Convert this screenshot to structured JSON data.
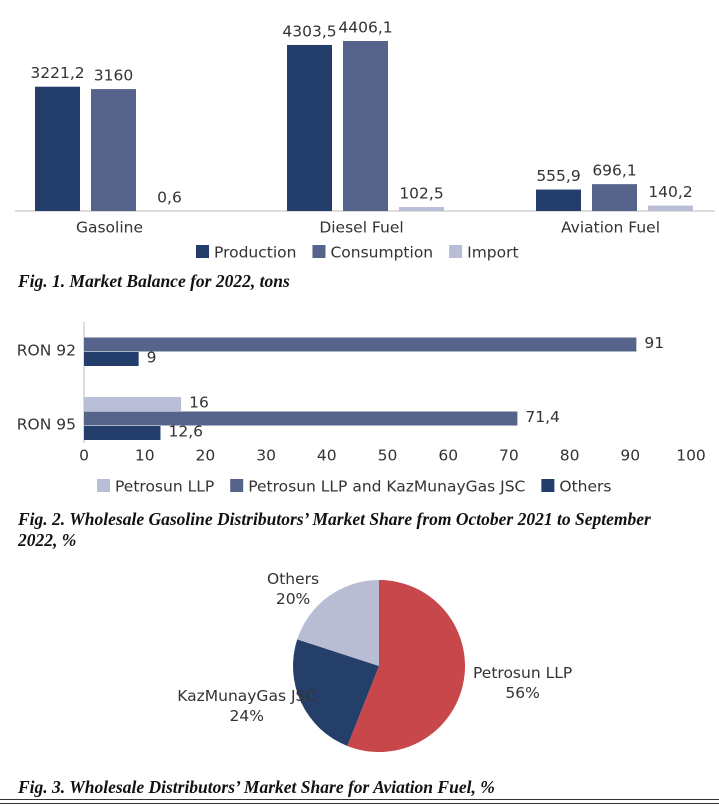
{
  "chart_data": [
    {
      "type": "bar",
      "title": "Fig. 1. Market Balance for 2022, tons",
      "categories": [
        "Gasoline",
        "Diesel Fuel",
        "Aviation Fuel"
      ],
      "series": [
        {
          "name": "Production",
          "color": "#233e6a",
          "values": [
            3221.2,
            4303.5,
            555.9
          ],
          "value_labels": [
            "3221,2",
            "4303,5",
            "555,9"
          ]
        },
        {
          "name": "Consumption",
          "color": "#56648c",
          "values": [
            3160,
            4406.1,
            696.1
          ],
          "value_labels": [
            "3160",
            "4406,1",
            "696,1"
          ]
        },
        {
          "name": "Import",
          "color": "#b9bdd5",
          "values": [
            0.6,
            102.5,
            140.2
          ],
          "value_labels": [
            "0,6",
            "102,5",
            "140,2"
          ]
        }
      ]
    },
    {
      "type": "hbar",
      "title": "Fig. 2. Wholesale Gasoline Distributors’ Market Share from October 2021 to September 2022, %",
      "categories": [
        "RON 92",
        "RON 95"
      ],
      "series": [
        {
          "name": "Petrosun LLP",
          "color": "#b9bdd5",
          "values": [
            null,
            16
          ],
          "value_labels": [
            null,
            "16"
          ]
        },
        {
          "name": "Petrosun LLP and KazMunayGas JSC",
          "color": "#56648c",
          "values": [
            91,
            71.4
          ],
          "value_labels": [
            "91",
            "71,4"
          ]
        },
        {
          "name": "Others",
          "color": "#233e6a",
          "values": [
            9,
            12.6
          ],
          "value_labels": [
            "9",
            "12,6"
          ]
        }
      ],
      "xlim": [
        0,
        100
      ],
      "xticks": [
        0,
        10,
        20,
        30,
        40,
        50,
        60,
        70,
        80,
        90,
        100
      ]
    },
    {
      "type": "pie",
      "title": "Fig. 3. Wholesale Distributors’ Market Share for Aviation Fuel, %",
      "categories": [
        "Petrosun LLP",
        "KazMunayGas JSC",
        "Others"
      ],
      "values": [
        56,
        24,
        20
      ],
      "value_labels": [
        "56%",
        "24%",
        "20%"
      ],
      "colors": [
        "#c8474b",
        "#253f6b",
        "#b8bdd3"
      ]
    }
  ]
}
